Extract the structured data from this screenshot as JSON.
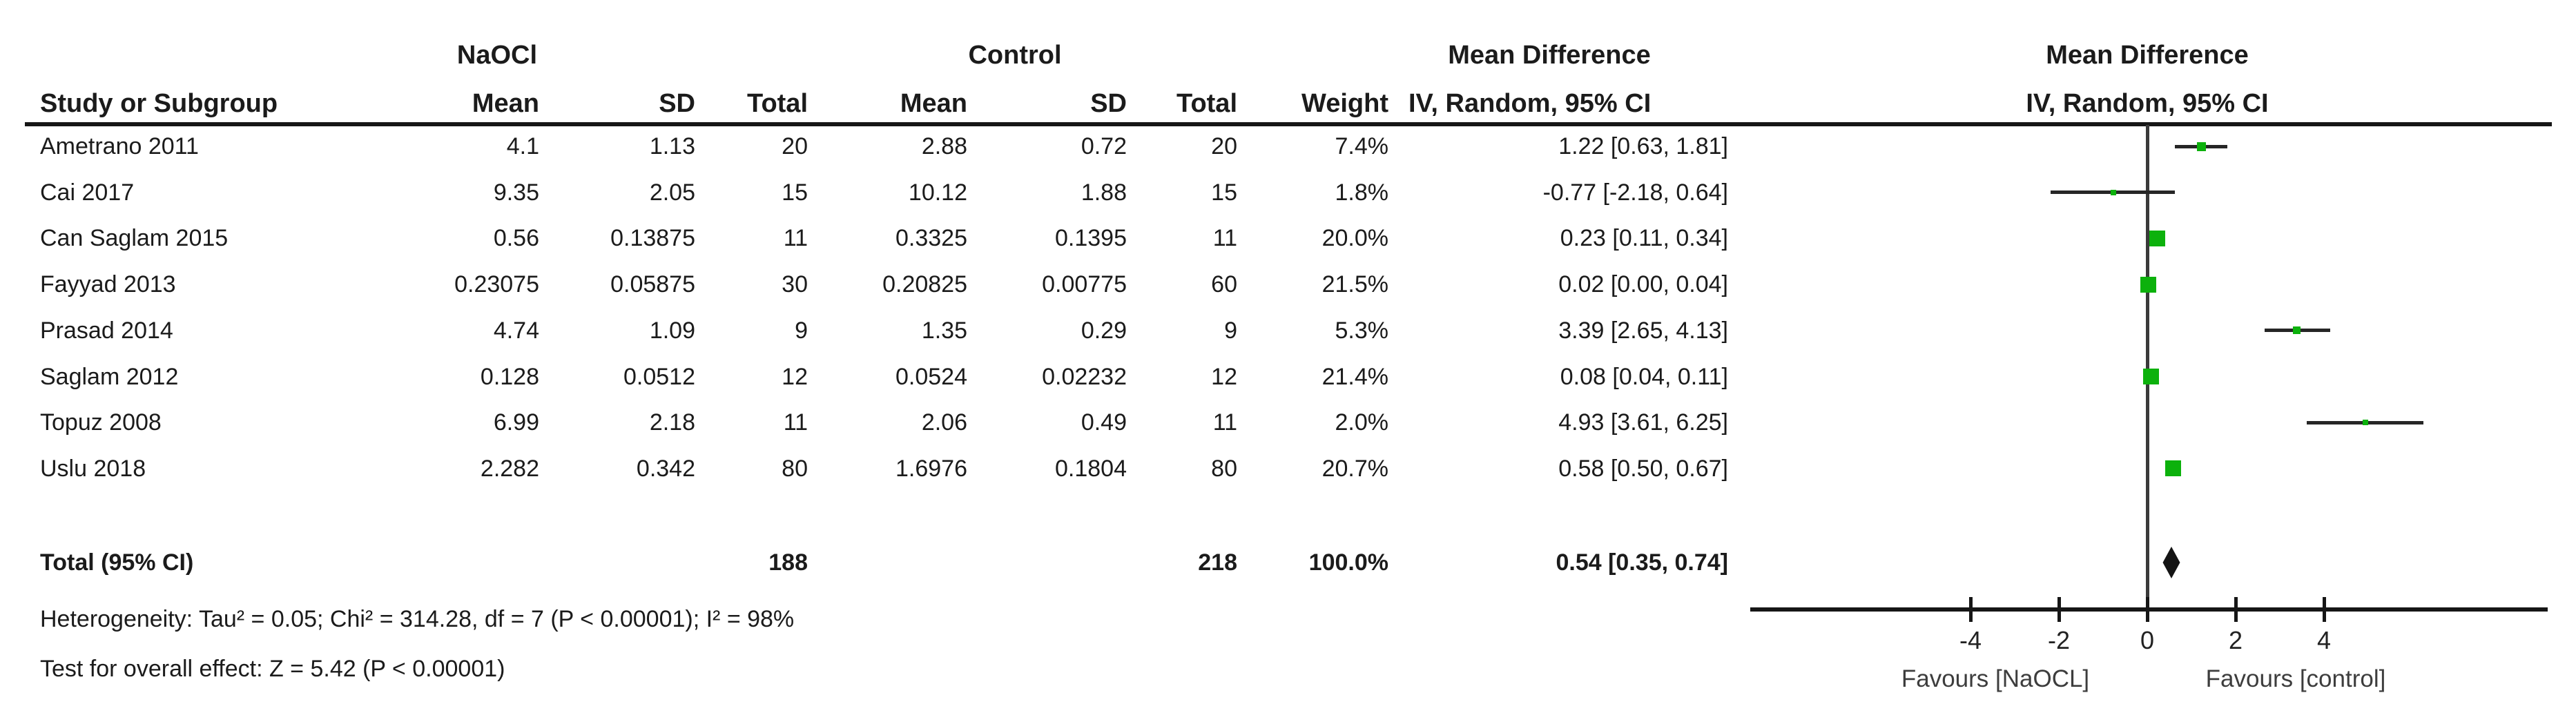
{
  "table": {
    "group_headers": {
      "experimental": "NaOCl",
      "control": "Control",
      "effect": "Mean Difference"
    },
    "columns": {
      "study": "Study or Subgroup",
      "mean1": "Mean",
      "sd1": "SD",
      "total1": "Total",
      "mean2": "Mean",
      "sd2": "SD",
      "total2": "Total",
      "weight": "Weight",
      "ci": "IV, Random, 95% CI"
    },
    "rows": [
      {
        "study": "Ametrano  2011",
        "mean1": "4.1",
        "sd1": "1.13",
        "total1": "20",
        "mean2": "2.88",
        "sd2": "0.72",
        "total2": "20",
        "weight": "7.4%",
        "ci": "1.22 [0.63, 1.81]"
      },
      {
        "study": "Cai 2017",
        "mean1": "9.35",
        "sd1": "2.05",
        "total1": "15",
        "mean2": "10.12",
        "sd2": "1.88",
        "total2": "15",
        "weight": "1.8%",
        "ci": "-0.77 [-2.18, 0.64]"
      },
      {
        "study": "Can Saglam 2015",
        "mean1": "0.56",
        "sd1": "0.13875",
        "total1": "11",
        "mean2": "0.3325",
        "sd2": "0.1395",
        "total2": "11",
        "weight": "20.0%",
        "ci": "0.23 [0.11, 0.34]"
      },
      {
        "study": "Fayyad  2013",
        "mean1": "0.23075",
        "sd1": "0.05875",
        "total1": "30",
        "mean2": "0.20825",
        "sd2": "0.00775",
        "total2": "60",
        "weight": "21.5%",
        "ci": "0.02 [0.00, 0.04]"
      },
      {
        "study": "Prasad 2014",
        "mean1": "4.74",
        "sd1": "1.09",
        "total1": "9",
        "mean2": "1.35",
        "sd2": "0.29",
        "total2": "9",
        "weight": "5.3%",
        "ci": "3.39 [2.65, 4.13]"
      },
      {
        "study": "Saglam 2012",
        "mean1": "0.128",
        "sd1": "0.0512",
        "total1": "12",
        "mean2": "0.0524",
        "sd2": "0.02232",
        "total2": "12",
        "weight": "21.4%",
        "ci": "0.08 [0.04, 0.11]"
      },
      {
        "study": "Topuz 2008",
        "mean1": "6.99",
        "sd1": "2.18",
        "total1": "11",
        "mean2": "2.06",
        "sd2": "0.49",
        "total2": "11",
        "weight": "2.0%",
        "ci": "4.93 [3.61, 6.25]"
      },
      {
        "study": "Uslu 2018",
        "mean1": "2.282",
        "sd1": "0.342",
        "total1": "80",
        "mean2": "1.6976",
        "sd2": "0.1804",
        "total2": "80",
        "weight": "20.7%",
        "ci": "0.58 [0.50, 0.67]"
      }
    ],
    "total_row": {
      "label": "Total (95% CI)",
      "total1": "188",
      "total2": "218",
      "weight": "100.0%",
      "ci": "0.54 [0.35, 0.74]"
    }
  },
  "footnotes": {
    "heterogeneity": "Heterogeneity: Tau² = 0.05; Chi² = 314.28, df = 7 (P < 0.00001); I² = 98%",
    "overall_effect": "Test for overall effect: Z = 5.42 (P < 0.00001)"
  },
  "plot": {
    "header_line1": "Mean Difference",
    "header_line2": "IV, Random, 95% CI",
    "favours_left": "Favours [NaOCL]",
    "favours_right": "Favours [control]",
    "marker_color": "#0cb10c",
    "ci_line_color": "#262626",
    "diamond_color": "#141414",
    "axis_ticks": [
      {
        "value": -4,
        "label": "-4"
      },
      {
        "value": -2,
        "label": "-2"
      },
      {
        "value": 0,
        "label": "0"
      },
      {
        "value": 2,
        "label": "2"
      },
      {
        "value": 4,
        "label": "4"
      }
    ]
  },
  "chart_data": {
    "type": "scatter",
    "variant": "forest-plot",
    "title": "Mean Difference, IV, Random, 95% CI",
    "xlabel_left": "Favours [NaOCL]",
    "xlabel_right": "Favours [control]",
    "x_ticks": [
      -4,
      -2,
      0,
      2,
      4
    ],
    "xlim": [
      -9,
      9.7
    ],
    "studies": [
      {
        "name": "Ametrano  2011",
        "md": 1.22,
        "ci_low": 0.63,
        "ci_high": 1.81,
        "weight_pct": 7.4
      },
      {
        "name": "Cai 2017",
        "md": -0.77,
        "ci_low": -2.18,
        "ci_high": 0.64,
        "weight_pct": 1.8
      },
      {
        "name": "Can Saglam 2015",
        "md": 0.23,
        "ci_low": 0.11,
        "ci_high": 0.34,
        "weight_pct": 20.0
      },
      {
        "name": "Fayyad  2013",
        "md": 0.02,
        "ci_low": 0.0,
        "ci_high": 0.04,
        "weight_pct": 21.5
      },
      {
        "name": "Prasad 2014",
        "md": 3.39,
        "ci_low": 2.65,
        "ci_high": 4.13,
        "weight_pct": 5.3
      },
      {
        "name": "Saglam 2012",
        "md": 0.08,
        "ci_low": 0.04,
        "ci_high": 0.11,
        "weight_pct": 21.4
      },
      {
        "name": "Topuz 2008",
        "md": 4.93,
        "ci_low": 3.61,
        "ci_high": 6.25,
        "weight_pct": 2.0
      },
      {
        "name": "Uslu 2018",
        "md": 0.58,
        "ci_low": 0.5,
        "ci_high": 0.67,
        "weight_pct": 20.7
      }
    ],
    "total": {
      "name": "Total (95% CI)",
      "md": 0.54,
      "ci_low": 0.35,
      "ci_high": 0.74,
      "weight_pct": 100.0
    }
  }
}
